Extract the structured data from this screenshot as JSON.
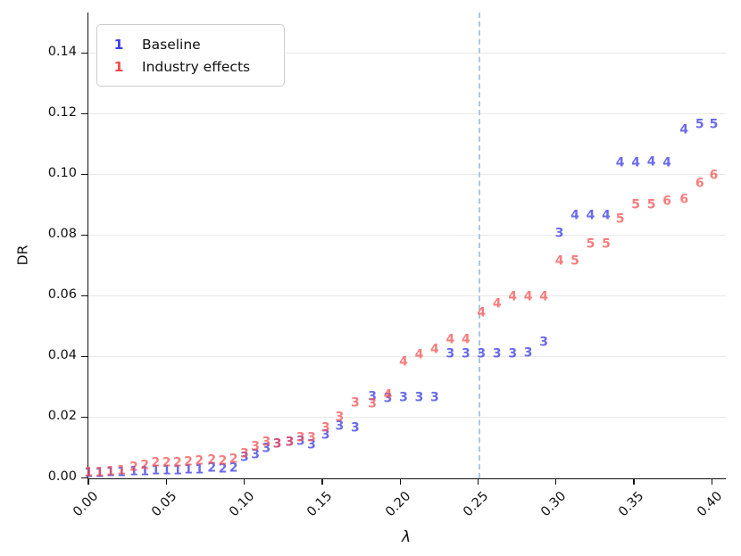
{
  "chart_data": {
    "type": "scatter",
    "title": "",
    "xlabel": "λ",
    "ylabel": "DR",
    "xlim": [
      -0.008,
      0.409
    ],
    "ylim": [
      0,
      0.147
    ],
    "grid": "horizontal",
    "legend_position": "upper left",
    "x_ticks": {
      "values": [
        0.0,
        0.05,
        0.1,
        0.15,
        0.2,
        0.25,
        0.3,
        0.35,
        0.4
      ],
      "labels": [
        "0.00",
        "0.05",
        "0.10",
        "0.15",
        "0.20",
        "0.25",
        "0.30",
        "0.35",
        "0.40"
      ]
    },
    "y_ticks": {
      "values": [
        0.0,
        0.02,
        0.04,
        0.06,
        0.08,
        0.1,
        0.12,
        0.14
      ],
      "labels": [
        "0.00",
        "0.02",
        "0.04",
        "0.06",
        "0.08",
        "0.10",
        "0.12",
        "0.14"
      ]
    },
    "vline": {
      "x": 0.25,
      "style": "dashed",
      "color": "#a9c9e2"
    },
    "legend": [
      {
        "marker": "1",
        "color": "#3c3cf0",
        "label": "Baseline"
      },
      {
        "marker": "1",
        "color": "#fb4848",
        "label": "Industry effects"
      }
    ],
    "series": [
      {
        "name": "Baseline",
        "color": "#4646e8",
        "marker_meaning": "digit shown is the marker value at each point",
        "points_format": [
          "lambda",
          "DR",
          "digit"
        ],
        "points": [
          [
            0.0,
            0.0012,
            1
          ],
          [
            0.007,
            0.0012,
            1
          ],
          [
            0.014,
            0.0014,
            1
          ],
          [
            0.021,
            0.0016,
            1
          ],
          [
            0.029,
            0.0018,
            1
          ],
          [
            0.036,
            0.0018,
            1
          ],
          [
            0.043,
            0.002,
            1
          ],
          [
            0.05,
            0.0021,
            1
          ],
          [
            0.057,
            0.0022,
            1
          ],
          [
            0.064,
            0.0024,
            1
          ],
          [
            0.071,
            0.0024,
            1
          ],
          [
            0.079,
            0.0029,
            2
          ],
          [
            0.086,
            0.0026,
            2
          ],
          [
            0.093,
            0.003,
            2
          ],
          [
            0.1,
            0.0064,
            3
          ],
          [
            0.107,
            0.0074,
            3
          ],
          [
            0.114,
            0.0095,
            3
          ],
          [
            0.121,
            0.0108,
            3
          ],
          [
            0.129,
            0.0114,
            3
          ],
          [
            0.136,
            0.0118,
            3
          ],
          [
            0.143,
            0.0107,
            3
          ],
          [
            0.152,
            0.0138,
            3
          ],
          [
            0.161,
            0.0167,
            3
          ],
          [
            0.171,
            0.0162,
            3
          ],
          [
            0.182,
            0.0265,
            3
          ],
          [
            0.192,
            0.0258,
            3
          ],
          [
            0.202,
            0.0262,
            3
          ],
          [
            0.212,
            0.0262,
            3
          ],
          [
            0.222,
            0.0262,
            3
          ],
          [
            0.232,
            0.0407,
            3
          ],
          [
            0.242,
            0.0407,
            3
          ],
          [
            0.252,
            0.0407,
            3
          ],
          [
            0.262,
            0.0407,
            3
          ],
          [
            0.272,
            0.0407,
            3
          ],
          [
            0.282,
            0.041,
            3
          ],
          [
            0.292,
            0.0444,
            3
          ],
          [
            0.302,
            0.0803,
            3
          ],
          [
            0.312,
            0.086,
            4
          ],
          [
            0.322,
            0.0862,
            4
          ],
          [
            0.332,
            0.086,
            4
          ],
          [
            0.341,
            0.1036,
            4
          ],
          [
            0.351,
            0.1036,
            4
          ],
          [
            0.361,
            0.1038,
            4
          ],
          [
            0.371,
            0.1036,
            4
          ],
          [
            0.382,
            0.1144,
            4
          ],
          [
            0.392,
            0.1161,
            5
          ],
          [
            0.401,
            0.1161,
            5
          ]
        ]
      },
      {
        "name": "Industry effects",
        "color": "#f84f4f",
        "marker_meaning": "digit shown is the marker value at each point",
        "points_format": [
          "lambda",
          "DR",
          "digit"
        ],
        "points": [
          [
            0.0,
            0.0016,
            1
          ],
          [
            0.007,
            0.0016,
            1
          ],
          [
            0.014,
            0.0018,
            1
          ],
          [
            0.021,
            0.0021,
            1
          ],
          [
            0.029,
            0.0033,
            2
          ],
          [
            0.036,
            0.0039,
            2
          ],
          [
            0.043,
            0.0046,
            2
          ],
          [
            0.05,
            0.0047,
            2
          ],
          [
            0.057,
            0.0048,
            2
          ],
          [
            0.064,
            0.005,
            2
          ],
          [
            0.071,
            0.0052,
            2
          ],
          [
            0.079,
            0.0055,
            2
          ],
          [
            0.086,
            0.0052,
            2
          ],
          [
            0.093,
            0.0058,
            2
          ],
          [
            0.1,
            0.0075,
            3
          ],
          [
            0.107,
            0.0101,
            3
          ],
          [
            0.114,
            0.0116,
            3
          ],
          [
            0.121,
            0.011,
            3
          ],
          [
            0.129,
            0.0116,
            3
          ],
          [
            0.136,
            0.0128,
            3
          ],
          [
            0.143,
            0.013,
            3
          ],
          [
            0.152,
            0.0162,
            3
          ],
          [
            0.161,
            0.0196,
            3
          ],
          [
            0.171,
            0.0245,
            3
          ],
          [
            0.182,
            0.024,
            3
          ],
          [
            0.192,
            0.027,
            4
          ],
          [
            0.202,
            0.0379,
            4
          ],
          [
            0.212,
            0.0402,
            4
          ],
          [
            0.222,
            0.042,
            4
          ],
          [
            0.232,
            0.0454,
            4
          ],
          [
            0.242,
            0.0454,
            4
          ],
          [
            0.252,
            0.0542,
            4
          ],
          [
            0.262,
            0.0571,
            4
          ],
          [
            0.272,
            0.0595,
            4
          ],
          [
            0.282,
            0.0595,
            4
          ],
          [
            0.292,
            0.0595,
            4
          ],
          [
            0.302,
            0.071,
            4
          ],
          [
            0.312,
            0.071,
            5
          ],
          [
            0.322,
            0.0766,
            5
          ],
          [
            0.332,
            0.0766,
            5
          ],
          [
            0.341,
            0.085,
            5
          ],
          [
            0.351,
            0.0898,
            5
          ],
          [
            0.361,
            0.0898,
            5
          ],
          [
            0.371,
            0.0908,
            6
          ],
          [
            0.382,
            0.0913,
            6
          ],
          [
            0.392,
            0.0968,
            6
          ],
          [
            0.401,
            0.0994,
            6
          ]
        ]
      }
    ]
  }
}
